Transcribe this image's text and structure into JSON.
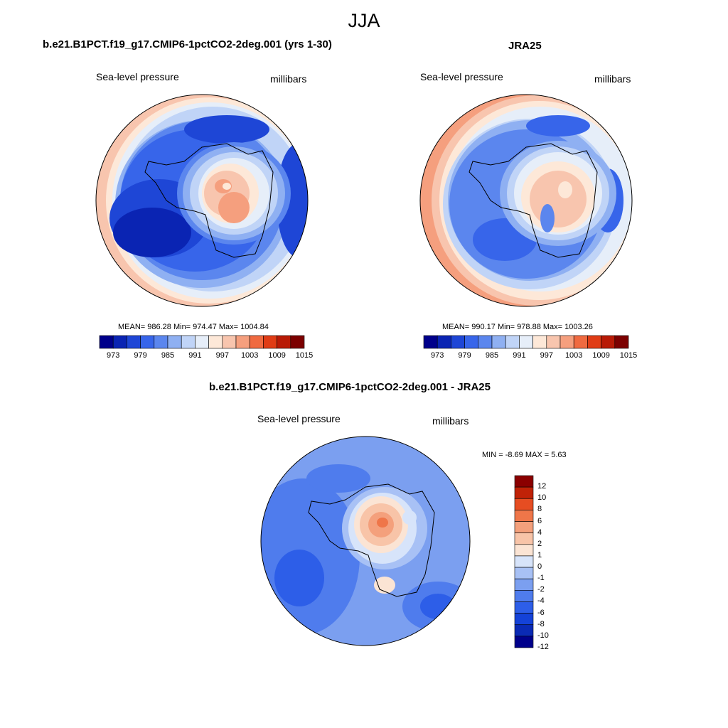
{
  "figure": {
    "title": "JJA",
    "colors": {
      "abs_scale": [
        "#00008b",
        "#0a24b3",
        "#1e46d6",
        "#3765ea",
        "#5b86ee",
        "#8fb0f2",
        "#c0d4f7",
        "#e6eef9",
        "#fde8d8",
        "#f8c5ae",
        "#f59f7e",
        "#f06a40",
        "#e03c15",
        "#b81a06",
        "#7c0000"
      ],
      "diff_scale": [
        "#00008b",
        "#0a2ab5",
        "#1442d8",
        "#2d5ee8",
        "#4f7ced",
        "#7b9ff0",
        "#a8c1f5",
        "#d7e4fa",
        "#fbe4d4",
        "#f8c4a8",
        "#f4a07c",
        "#ef7649",
        "#e64d22",
        "#c02207",
        "#8b0000"
      ]
    }
  },
  "panels": {
    "model": {
      "title": "b.e21.B1PCT.f19_g17.CMIP6-1pctCO2-2deg.001 (yrs 1-30)",
      "variable": "Sea-level pressure",
      "units": "millibars",
      "stats_text": "MEAN= 986.28  Min= 974.47  Max= 1004.84",
      "colorbar_labels": [
        "973",
        "979",
        "985",
        "991",
        "997",
        "1003",
        "1009",
        "1015"
      ]
    },
    "obs": {
      "title": "JRA25",
      "variable": "Sea-level pressure",
      "units": "millibars",
      "stats_text": "MEAN= 990.17  Min= 978.88  Max= 1003.26",
      "colorbar_labels": [
        "973",
        "979",
        "985",
        "991",
        "997",
        "1003",
        "1009",
        "1015"
      ]
    },
    "diff": {
      "title": "b.e21.B1PCT.f19_g17.CMIP6-1pctCO2-2deg.001 - JRA25",
      "variable": "Sea-level pressure",
      "units": "millibars",
      "stats_text": "MIN =  -8.69 MAX =   5.63",
      "colorbar_labels": [
        "12",
        "10",
        "8",
        "6",
        "4",
        "2",
        "1",
        "0",
        "-1",
        "-2",
        "-4",
        "-6",
        "-8",
        "-10",
        "-12"
      ]
    }
  }
}
